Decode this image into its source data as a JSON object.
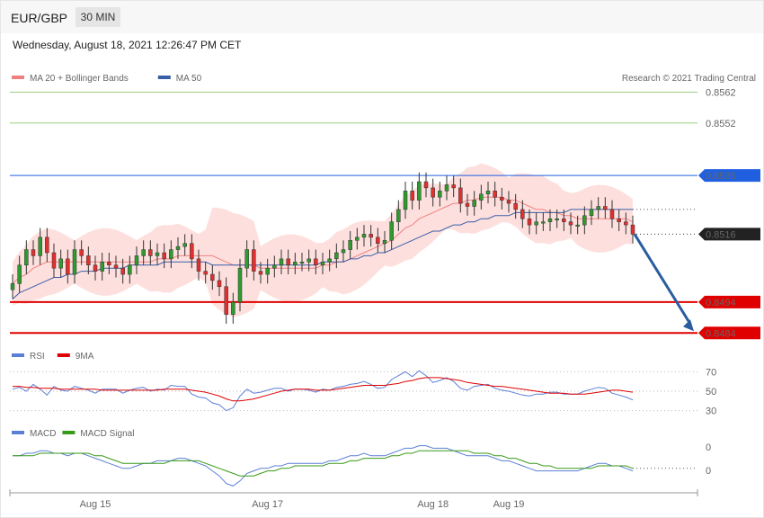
{
  "header": {
    "pair": "EUR/GBP",
    "timeframe": "30 MIN"
  },
  "datetime": "Wednesday, August 18, 2021 12:26:47 PM CET",
  "credit": "Research © 2021 Trading Central",
  "legend": {
    "main": [
      {
        "label": "MA 20 + Bollinger Bands",
        "color": "#f08080"
      },
      {
        "label": "MA 50",
        "color": "#3a5ea8"
      }
    ],
    "rsi": [
      {
        "label": "RSI",
        "color": "#5b7fd6"
      },
      {
        "label": "9MA",
        "color": "#e00000"
      }
    ],
    "macd": [
      {
        "label": "MACD",
        "color": "#5b7fd6"
      },
      {
        "label": "MACD Signal",
        "color": "#3a9a1a"
      }
    ]
  },
  "chart_data": [
    {
      "type": "candlestick",
      "ylim": [
        0.848,
        0.857
      ],
      "x_ticks": [
        "Aug 15",
        "Aug 17",
        "Aug 18",
        "Aug 19"
      ],
      "price_levels": [
        {
          "value": 0.8562,
          "label": "0.8562",
          "color": "#6aa84f",
          "style": "thin"
        },
        {
          "value": 0.8552,
          "label": "0.8552",
          "color": "#6aa84f",
          "style": "thin"
        },
        {
          "value": 0.8535,
          "label": "0.8535",
          "color": "#1f5fe0",
          "style": "resistance"
        },
        {
          "value": 0.8516,
          "label": "0.8516",
          "color": "#222222",
          "style": "last"
        },
        {
          "value": 0.8494,
          "label": "0.8494",
          "color": "#e00000",
          "style": "support"
        },
        {
          "value": 0.8484,
          "label": "0.8484",
          "color": "#e00000",
          "style": "support"
        }
      ],
      "close": [
        0.85,
        0.8506,
        0.8511,
        0.8509,
        0.8515,
        0.851,
        0.8505,
        0.8508,
        0.8503,
        0.8511,
        0.8509,
        0.8506,
        0.8504,
        0.8507,
        0.8506,
        0.8505,
        0.8503,
        0.8506,
        0.8509,
        0.8511,
        0.8509,
        0.851,
        0.8508,
        0.8511,
        0.8512,
        0.8513,
        0.8508,
        0.8504,
        0.8503,
        0.8501,
        0.8499,
        0.849,
        0.8494,
        0.8505,
        0.8511,
        0.8504,
        0.8503,
        0.8505,
        0.8506,
        0.8508,
        0.8506,
        0.8507,
        0.8507,
        0.8508,
        0.8506,
        0.8507,
        0.8508,
        0.851,
        0.8511,
        0.8514,
        0.8515,
        0.8516,
        0.8515,
        0.8513,
        0.8514,
        0.852,
        0.8524,
        0.853,
        0.8527,
        0.8533,
        0.8531,
        0.8528,
        0.853,
        0.8532,
        0.8531,
        0.8526,
        0.8525,
        0.8527,
        0.8529,
        0.853,
        0.8528,
        0.8527,
        0.8526,
        0.8524,
        0.8521,
        0.8519,
        0.852,
        0.852,
        0.8521,
        0.8521,
        0.852,
        0.8519,
        0.8519,
        0.8522,
        0.8524,
        0.8525,
        0.8524,
        0.8521,
        0.852,
        0.8519,
        0.8516
      ],
      "ma20": [
        0.85,
        0.8502,
        0.8503,
        0.8505,
        0.8506,
        0.8507,
        0.8507,
        0.8507,
        0.8507,
        0.8507,
        0.8507,
        0.8507,
        0.8507,
        0.8507,
        0.8507,
        0.8507,
        0.8507,
        0.8507,
        0.8507,
        0.8507,
        0.8507,
        0.8508,
        0.8508,
        0.8508,
        0.8509,
        0.8509,
        0.8509,
        0.8509,
        0.8509,
        0.8509,
        0.8508,
        0.8507,
        0.8506,
        0.8506,
        0.8506,
        0.8506,
        0.8505,
        0.8505,
        0.8505,
        0.8505,
        0.8505,
        0.8505,
        0.8505,
        0.8505,
        0.8505,
        0.8506,
        0.8506,
        0.8507,
        0.8507,
        0.8508,
        0.8509,
        0.851,
        0.8511,
        0.8512,
        0.8513,
        0.8514,
        0.8516,
        0.8518,
        0.8519,
        0.8521,
        0.8522,
        0.8523,
        0.8524,
        0.8525,
        0.8526,
        0.8526,
        0.8527,
        0.8527,
        0.8528,
        0.8528,
        0.8528,
        0.8528,
        0.8527,
        0.8527,
        0.8526,
        0.8525,
        0.8524,
        0.8524,
        0.8523,
        0.8523,
        0.8522,
        0.8522,
        0.8521,
        0.8521,
        0.8521,
        0.8521,
        0.8521,
        0.8521,
        0.8521,
        0.8521,
        0.852
      ],
      "ma50": [
        0.8495,
        0.8497,
        0.8498,
        0.8499,
        0.85,
        0.8501,
        0.8502,
        0.8502,
        0.8503,
        0.8503,
        0.8504,
        0.8504,
        0.8504,
        0.8505,
        0.8505,
        0.8505,
        0.8505,
        0.8506,
        0.8506,
        0.8506,
        0.8506,
        0.8506,
        0.8507,
        0.8507,
        0.8507,
        0.8507,
        0.8507,
        0.8507,
        0.8507,
        0.8506,
        0.8506,
        0.8506,
        0.8506,
        0.8506,
        0.8506,
        0.8506,
        0.8506,
        0.8506,
        0.8506,
        0.8506,
        0.8506,
        0.8506,
        0.8506,
        0.8506,
        0.8506,
        0.8507,
        0.8507,
        0.8507,
        0.8507,
        0.8508,
        0.8508,
        0.8509,
        0.8509,
        0.851,
        0.851,
        0.8511,
        0.8512,
        0.8513,
        0.8514,
        0.8515,
        0.8516,
        0.8517,
        0.8517,
        0.8518,
        0.8519,
        0.8519,
        0.852,
        0.852,
        0.8521,
        0.8521,
        0.8522,
        0.8522,
        0.8522,
        0.8523,
        0.8523,
        0.8523,
        0.8523,
        0.8523,
        0.8523,
        0.8523,
        0.8523,
        0.8524,
        0.8524,
        0.8524,
        0.8524,
        0.8524,
        0.8524,
        0.8524,
        0.8524,
        0.8524,
        0.8524
      ],
      "projection": {
        "from": 0.8516,
        "to": 0.8484
      }
    },
    {
      "type": "line",
      "name": "RSI",
      "ylim": [
        25,
        75
      ],
      "y_ticks": [
        70,
        50,
        30
      ],
      "rsi": [
        52,
        54,
        50,
        57,
        52,
        46,
        55,
        51,
        50,
        55,
        53,
        51,
        48,
        52,
        52,
        52,
        48,
        51,
        53,
        54,
        50,
        52,
        51,
        56,
        55,
        55,
        47,
        44,
        43,
        38,
        36,
        30,
        33,
        45,
        52,
        48,
        49,
        51,
        53,
        53,
        50,
        52,
        52,
        51,
        49,
        52,
        51,
        54,
        55,
        57,
        58,
        60,
        57,
        53,
        54,
        62,
        66,
        70,
        65,
        71,
        66,
        59,
        61,
        64,
        60,
        53,
        51,
        55,
        56,
        57,
        53,
        51,
        50,
        48,
        46,
        45,
        47,
        47,
        49,
        49,
        47,
        47,
        47,
        50,
        52,
        54,
        53,
        48,
        46,
        44,
        41
      ],
      "ma9": [
        55,
        55,
        54,
        54,
        53,
        53,
        53,
        52,
        52,
        52,
        52,
        52,
        52,
        51,
        51,
        51,
        51,
        51,
        51,
        51,
        51,
        51,
        52,
        52,
        52,
        52,
        51,
        50,
        49,
        47,
        45,
        42,
        40,
        40,
        41,
        42,
        44,
        46,
        48,
        50,
        51,
        52,
        52,
        52,
        51,
        51,
        51,
        52,
        53,
        54,
        55,
        56,
        56,
        56,
        56,
        57,
        58,
        60,
        61,
        63,
        64,
        64,
        64,
        63,
        62,
        61,
        59,
        58,
        57,
        56,
        55,
        55,
        54,
        53,
        52,
        51,
        50,
        49,
        48,
        48,
        48,
        47,
        47,
        47,
        48,
        49,
        50,
        51,
        51,
        50,
        49
      ]
    },
    {
      "type": "line",
      "name": "MACD",
      "ylim": [
        -0.001,
        0.001
      ],
      "y_ticks": [
        "0",
        "0"
      ],
      "macd": [
        0.0004,
        0.0004,
        0.0005,
        0.0005,
        0.0006,
        0.0006,
        0.0005,
        0.0005,
        0.0004,
        0.0005,
        0.0005,
        0.0004,
        0.0003,
        0.0002,
        0.0001,
        0.0,
        -0.0001,
        -0.0001,
        0.0,
        0.0001,
        0.0001,
        0.0002,
        0.0002,
        0.0002,
        0.0003,
        0.0003,
        0.0002,
        0.0001,
        0.0,
        -0.0002,
        -0.0004,
        -0.0007,
        -0.0008,
        -0.0006,
        -0.0003,
        -0.0002,
        -0.0001,
        -0.0001,
        0.0,
        0.0,
        0.0001,
        0.0001,
        0.0001,
        0.0001,
        0.0001,
        0.0001,
        0.0002,
        0.0002,
        0.0003,
        0.0004,
        0.0004,
        0.0005,
        0.0004,
        0.0004,
        0.0004,
        0.0005,
        0.0006,
        0.0007,
        0.0007,
        0.0008,
        0.0008,
        0.0007,
        0.0007,
        0.0007,
        0.0006,
        0.0005,
        0.0004,
        0.0004,
        0.0004,
        0.0004,
        0.0003,
        0.0002,
        0.0002,
        0.0001,
        0.0,
        -0.0001,
        -0.0002,
        -0.0002,
        -0.0002,
        -0.0002,
        -0.0002,
        -0.0002,
        -0.0002,
        -0.0001,
        0.0,
        0.0001,
        0.0001,
        0.0,
        0.0,
        -0.0001,
        -0.0002
      ],
      "signal": [
        0.0004,
        0.0004,
        0.0004,
        0.0004,
        0.0005,
        0.0005,
        0.0005,
        0.0005,
        0.0005,
        0.0005,
        0.0005,
        0.0005,
        0.0004,
        0.0004,
        0.0003,
        0.0002,
        0.0001,
        0.0001,
        0.0001,
        0.0001,
        0.0001,
        0.0001,
        0.0001,
        0.0002,
        0.0002,
        0.0002,
        0.0002,
        0.0002,
        0.0001,
        0.0,
        -0.0001,
        -0.0002,
        -0.0003,
        -0.0004,
        -0.0004,
        -0.0004,
        -0.0003,
        -0.0002,
        -0.0002,
        -0.0001,
        -0.0001,
        0.0,
        0.0,
        0.0,
        0.0,
        0.0,
        0.0001,
        0.0001,
        0.0001,
        0.0002,
        0.0002,
        0.0003,
        0.0003,
        0.0003,
        0.0003,
        0.0004,
        0.0004,
        0.0005,
        0.0005,
        0.0006,
        0.0006,
        0.0006,
        0.0006,
        0.0006,
        0.0006,
        0.0006,
        0.0006,
        0.0005,
        0.0005,
        0.0005,
        0.0004,
        0.0004,
        0.0003,
        0.0003,
        0.0002,
        0.0001,
        0.0001,
        0.0,
        0.0,
        -0.0001,
        -0.0001,
        -0.0001,
        -0.0001,
        -0.0001,
        -0.0001,
        0.0,
        0.0,
        0.0,
        0.0,
        0.0,
        -0.0001
      ]
    }
  ]
}
